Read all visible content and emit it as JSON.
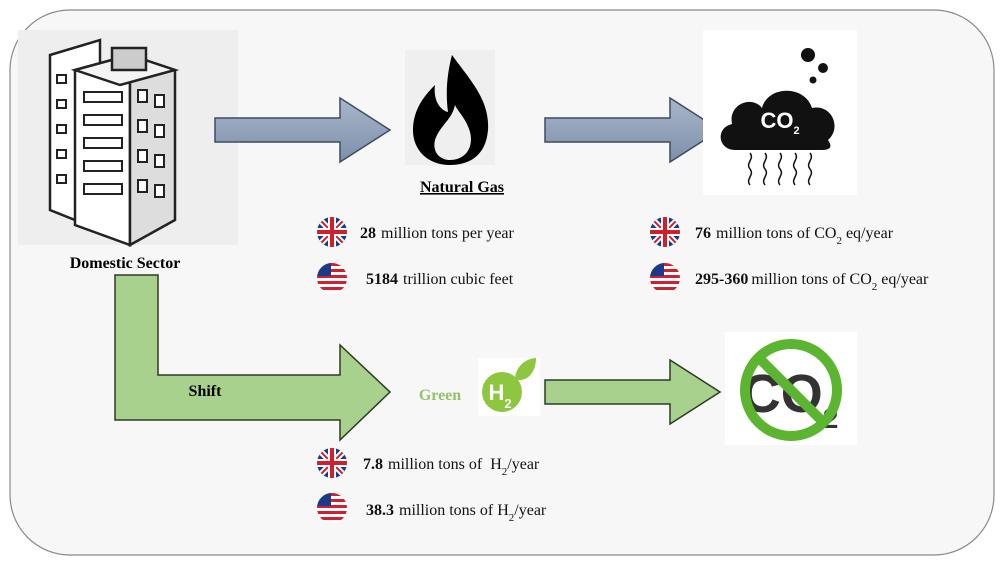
{
  "source": {
    "label": "Domestic Sector"
  },
  "natural_gas": {
    "label": "Natural Gas"
  },
  "co2_icon": {
    "label": "CO",
    "sub": "2"
  },
  "shift": {
    "label": "Shift"
  },
  "green": {
    "label": "Green"
  },
  "h2_icon": {
    "label": "H",
    "sub": "2"
  },
  "gas_stats": [
    {
      "amount": "28",
      "text": "million tons per year"
    },
    {
      "amount": "5184",
      "text": "trillion cubic feet"
    }
  ],
  "emission_stats": [
    {
      "amount": "76",
      "text": "million tons of CO",
      "sub": "2",
      "tail": "eq/year"
    },
    {
      "amount": "295-360",
      "text": "million tons of CO",
      "sub": "2",
      "tail": "eq/year"
    }
  ],
  "hydrogen_stats": [
    {
      "amount": "7.8",
      "text": "million tons of  H",
      "sub": "2",
      "tail": "/year"
    },
    {
      "amount": "38.3",
      "text": "million tons of H",
      "sub": "2",
      "tail": "/year"
    }
  ]
}
